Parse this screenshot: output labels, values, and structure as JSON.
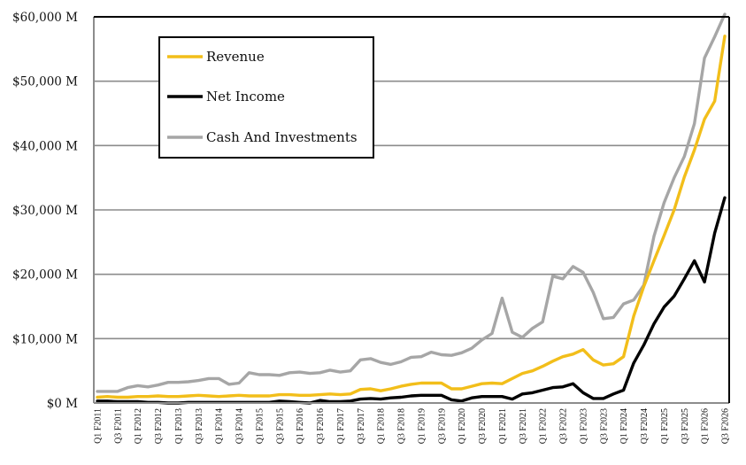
{
  "chart_data": {
    "type": "line",
    "title": "",
    "xlabel": "",
    "ylabel": "",
    "ylim": [
      0,
      60000
    ],
    "yunit": "M",
    "grid": true,
    "legend_position": "top-left",
    "y_ticks": [
      0,
      10000,
      20000,
      30000,
      40000,
      50000,
      60000
    ],
    "y_tick_labels": [
      "$0 M",
      "$10,000 M",
      "$20,000 M",
      "$30,000 M",
      "$40,000 M",
      "$50,000 M",
      "$60,000 M"
    ],
    "x_tick_labels": [
      "Q1 F2011",
      "Q3 F2011",
      "Q1 F2012",
      "Q3 F2012",
      "Q1 F2013",
      "Q3 F2013",
      "Q1 F2014",
      "Q3 F2014",
      "Q1 F2015",
      "Q3 F2015",
      "Q1 F2016",
      "Q3 F2016",
      "Q1 F2017",
      "Q3 F2017",
      "Q1 F2018",
      "Q3 F2018",
      "Q1 F2019",
      "Q3 F2019",
      "Q1 F2020",
      "Q3 F2020",
      "Q1 F2021",
      "Q3 F2021",
      "Q1 F2022",
      "Q3 F2022",
      "Q1 F2023",
      "Q3 F2023",
      "Q1 F2024",
      "Q3 F2024",
      "Q1 F2025",
      "Q3 F2025",
      "Q1 F2026",
      "Q3 F2026"
    ],
    "x_quarters_count": 63,
    "series": [
      {
        "name": "Revenue",
        "color": "#F2BE1A",
        "values": [
          900,
          1000,
          900,
          900,
          1000,
          1000,
          1100,
          1000,
          1000,
          1100,
          1200,
          1100,
          1000,
          1100,
          1200,
          1100,
          1100,
          1100,
          1300,
          1300,
          1200,
          1200,
          1300,
          1400,
          1300,
          1400,
          2100,
          2200,
          1900,
          2200,
          2600,
          2900,
          3100,
          3100,
          3100,
          2200,
          2200,
          2600,
          3000,
          3100,
          3000,
          3800,
          4600,
          5000,
          5700,
          6500,
          7200,
          7600,
          8300,
          6700,
          5900,
          6100,
          7200,
          13500,
          18100,
          22100,
          26000,
          30000,
          35100,
          39300,
          44100,
          46900,
          57000
        ]
      },
      {
        "name": "Net Income",
        "color": "#000000",
        "values": [
          300,
          300,
          200,
          200,
          200,
          100,
          100,
          0,
          0,
          100,
          100,
          100,
          100,
          100,
          100,
          100,
          100,
          100,
          300,
          200,
          100,
          0,
          400,
          200,
          200,
          300,
          600,
          700,
          600,
          800,
          900,
          1100,
          1200,
          1200,
          1200,
          500,
          300,
          800,
          1000,
          1000,
          1000,
          600,
          1400,
          1600,
          2000,
          2400,
          2500,
          3000,
          1600,
          700,
          700,
          1400,
          2000,
          6200,
          9000,
          12300,
          14900,
          16600,
          19300,
          22100,
          18800,
          26400,
          31900
        ]
      },
      {
        "name": "Cash And Investments",
        "color": "#A6A6A6",
        "values": [
          1800,
          1800,
          1800,
          2400,
          2700,
          2500,
          2800,
          3200,
          3200,
          3300,
          3500,
          3800,
          3800,
          2900,
          3100,
          4700,
          4400,
          4400,
          4300,
          4700,
          4800,
          4600,
          4700,
          5100,
          4800,
          5000,
          6700,
          6900,
          6300,
          6000,
          6400,
          7100,
          7200,
          7900,
          7500,
          7400,
          7800,
          8500,
          9800,
          10800,
          16300,
          11000,
          10200,
          11600,
          12600,
          19700,
          19300,
          21200,
          20300,
          17200,
          13100,
          13300,
          15400,
          16000,
          18300,
          25900,
          31100,
          35000,
          38300,
          43400,
          53600,
          56900,
          60400
        ]
      }
    ]
  }
}
